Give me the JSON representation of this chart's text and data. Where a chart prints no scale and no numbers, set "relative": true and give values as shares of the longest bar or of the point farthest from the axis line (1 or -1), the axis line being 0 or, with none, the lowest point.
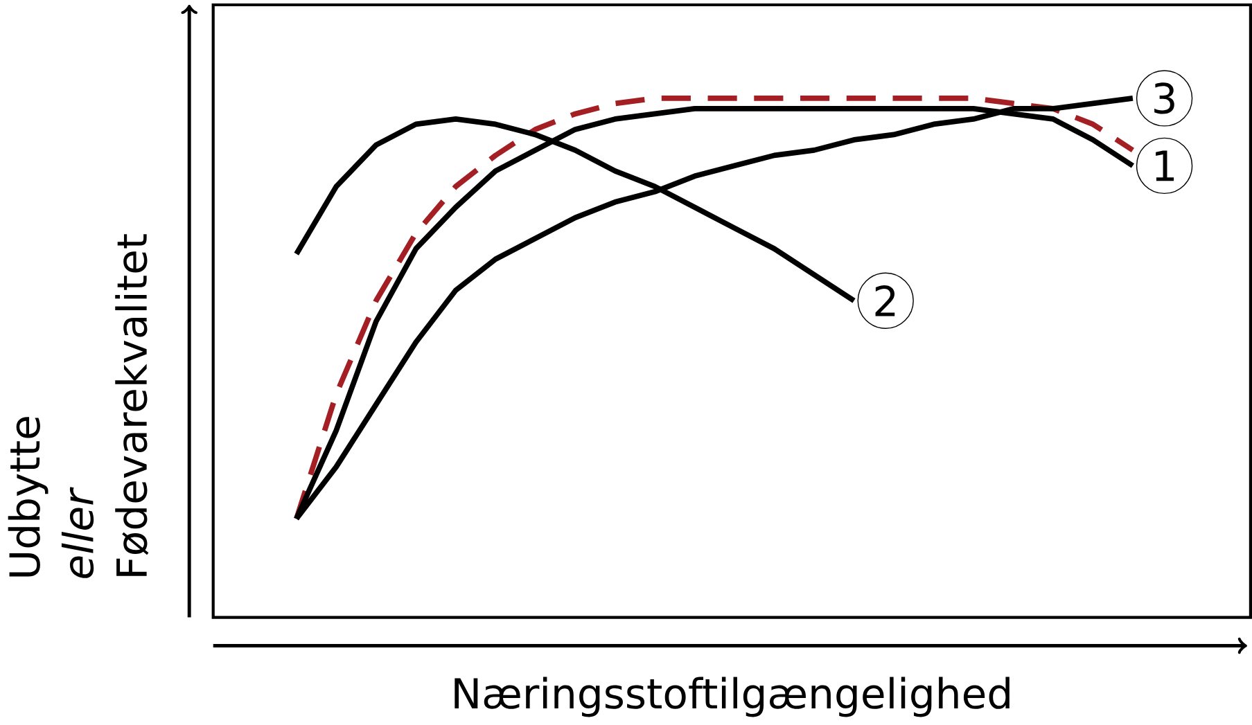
{
  "chart_data": {
    "type": "line",
    "relative": true,
    "xlabel": "Næringsstoftilgængelighed",
    "ylabel": "Udbytte *eller* Fødevarekvalitet",
    "marker": "none",
    "legend": "right",
    "categories": [
      null,
      null,
      null,
      null,
      null,
      null,
      null,
      null,
      null,
      null,
      null,
      null,
      null,
      null,
      null,
      null,
      null,
      null,
      null,
      null,
      null,
      null
    ],
    "series": [
      {
        "color": "#a31f24",
        "line_style": "dashed",
        "values": [
          0.19,
          0.43,
          0.61,
          0.74,
          0.83,
          0.89,
          0.94,
          0.97,
          0.99,
          1.0,
          1.0,
          1.0,
          1.0,
          1.0,
          1.0,
          1.0,
          1.0,
          1.0,
          0.99,
          0.98,
          0.95,
          0.9
        ]
      },
      {
        "name": "1",
        "color": "#000000",
        "line_style": "solid",
        "values": [
          0.19,
          0.36,
          0.57,
          0.71,
          0.79,
          0.86,
          0.9,
          0.94,
          0.96,
          0.97,
          0.98,
          0.98,
          0.98,
          0.98,
          0.98,
          0.98,
          0.98,
          0.98,
          0.97,
          0.96,
          0.92,
          0.87
        ]
      },
      {
        "name": "2",
        "color": "#000000",
        "line_style": "solid",
        "values": [
          0.7,
          0.83,
          0.91,
          0.95,
          0.96,
          0.95,
          0.93,
          0.9,
          0.86,
          0.83,
          0.79,
          0.75,
          0.71,
          0.66,
          0.61,
          null,
          null,
          null,
          null,
          null,
          null,
          null
        ]
      },
      {
        "name": "3",
        "color": "#000000",
        "line_style": "solid",
        "values": [
          0.19,
          0.29,
          0.41,
          0.53,
          0.63,
          0.69,
          0.73,
          0.77,
          0.8,
          0.82,
          0.85,
          0.87,
          0.89,
          0.9,
          0.92,
          0.93,
          0.95,
          0.96,
          0.98,
          0.98,
          0.99,
          1.0
        ]
      }
    ]
  }
}
